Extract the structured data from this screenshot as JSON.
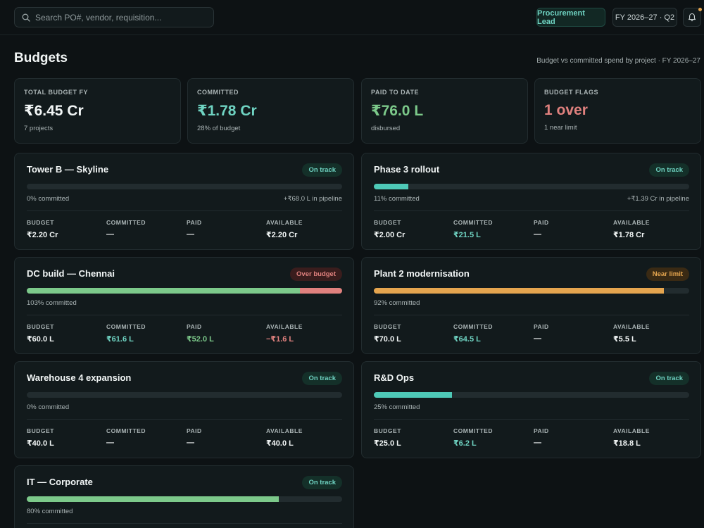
{
  "header": {
    "search_placeholder": "Search PO#, vendor, requisition...",
    "role": "Procurement Lead",
    "period": "FY 2026–27 · Q2"
  },
  "page": {
    "title": "Budgets",
    "subtitle": "Budget vs committed spend by project · FY 2026–27"
  },
  "kpis": [
    {
      "label": "TOTAL BUDGET FY",
      "value": "₹6.45 Cr",
      "sub": "7 projects",
      "color": "#f2f6f6"
    },
    {
      "label": "COMMITTED",
      "value": "₹1.78 Cr",
      "sub": "28% of budget",
      "color": "#6fd3c2"
    },
    {
      "label": "PAID TO DATE",
      "value": "₹76.0 L",
      "sub": "disbursed",
      "color": "#7cc98a"
    },
    {
      "label": "BUDGET FLAGS",
      "value": "1 over",
      "sub": "1 near limit",
      "color": "#e0817e"
    }
  ],
  "stat_labels": {
    "budget": "BUDGET",
    "committed": "COMMITTED",
    "paid": "PAID",
    "available": "AVAILABLE"
  },
  "projects": [
    {
      "name": "Tower B — Skyline",
      "status": "On track",
      "pct_label": "0% committed",
      "pipeline": "+₹68.0 L in pipeline",
      "budget": "₹2.20 Cr",
      "committed": "—",
      "paid": "—",
      "available": "₹2.20 Cr"
    },
    {
      "name": "Phase 3 rollout",
      "status": "On track",
      "pct_label": "11% committed",
      "pipeline": "+₹1.39 Cr in pipeline",
      "budget": "₹2.00 Cr",
      "committed": "₹21.5 L",
      "paid": "—",
      "available": "₹1.78 Cr"
    },
    {
      "name": "DC build — Chennai",
      "status": "Over budget",
      "pct_label": "103% committed",
      "pipeline": "",
      "budget": "₹60.0 L",
      "committed": "₹61.6 L",
      "paid": "₹52.0 L",
      "available": "−₹1.6 L"
    },
    {
      "name": "Plant 2 modernisation",
      "status": "Near limit",
      "pct_label": "92% committed",
      "pipeline": "",
      "budget": "₹70.0 L",
      "committed": "₹64.5 L",
      "paid": "—",
      "available": "₹5.5 L"
    },
    {
      "name": "Warehouse 4 expansion",
      "status": "On track",
      "pct_label": "0% committed",
      "pipeline": "",
      "budget": "₹40.0 L",
      "committed": "—",
      "paid": "—",
      "available": "₹40.0 L"
    },
    {
      "name": "R&D Ops",
      "status": "On track",
      "pct_label": "25% committed",
      "pipeline": "",
      "budget": "₹25.0 L",
      "committed": "₹6.2 L",
      "paid": "—",
      "available": "₹18.8 L"
    },
    {
      "name": "IT — Corporate",
      "status": "On track",
      "pct_label": "80% committed",
      "pipeline": "",
      "budget": "",
      "committed": "",
      "paid": "",
      "available": ""
    }
  ],
  "colors": {
    "teal": "#4ec9b7",
    "green": "#7cc98a",
    "amber": "#e5a54f",
    "red": "#e0817e",
    "background": "#0d1214",
    "card": "#121a1c"
  }
}
